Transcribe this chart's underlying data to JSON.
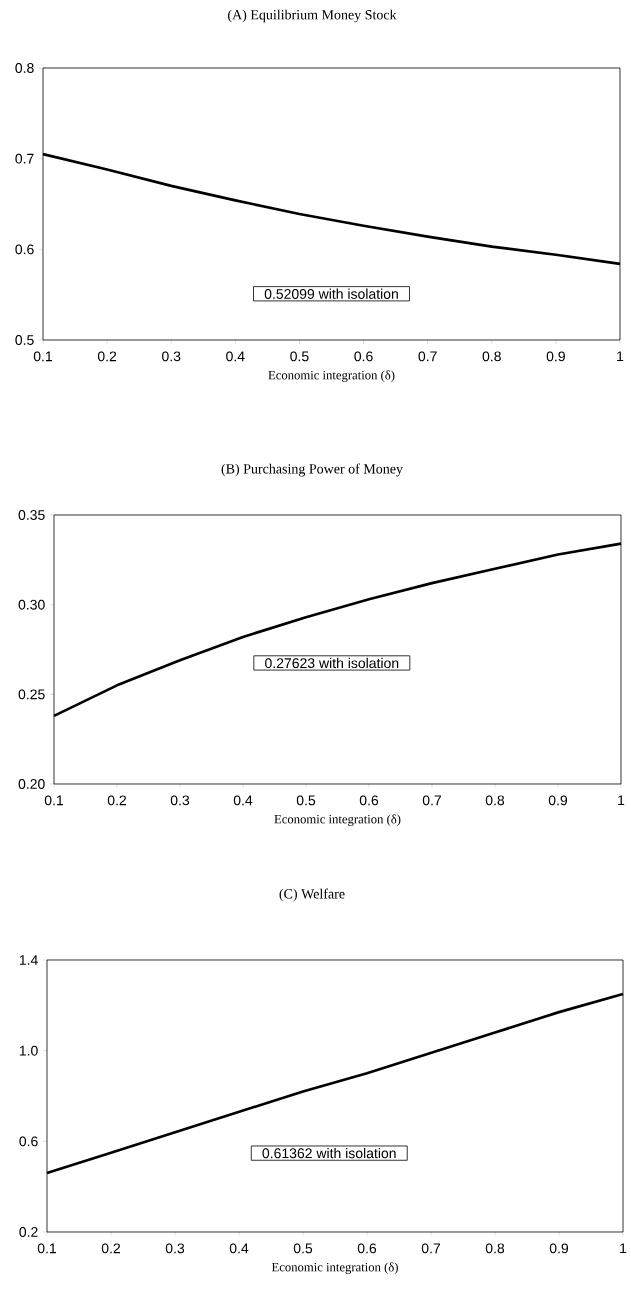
{
  "chart_data": [
    {
      "type": "line",
      "title": "(A) Equilibrium Money Stock",
      "xlabel": "Economic integration (δ)",
      "color": "#000000",
      "x": [
        0.1,
        0.2,
        0.3,
        0.4,
        0.5,
        0.6,
        0.7,
        0.8,
        0.9,
        1.0
      ],
      "values": [
        0.705,
        0.688,
        0.67,
        0.654,
        0.639,
        0.626,
        0.614,
        0.603,
        0.594,
        0.584
      ],
      "xlim": [
        0.1,
        1
      ],
      "ylim": [
        0.5,
        0.8
      ],
      "xticks": [
        0.1,
        0.2,
        0.3,
        0.4,
        0.5,
        0.6,
        0.7,
        0.8,
        0.9,
        1
      ],
      "yticks": [
        0.5,
        0.6,
        0.7,
        0.8
      ],
      "annotations": [
        "0.52099 with isolation"
      ]
    },
    {
      "type": "line",
      "title": "(B) Purchasing Power of Money",
      "xlabel": "Economic integration (δ)",
      "color": "#000000",
      "x": [
        0.1,
        0.2,
        0.3,
        0.4,
        0.5,
        0.6,
        0.7,
        0.8,
        0.9,
        1.0
      ],
      "values": [
        0.238,
        0.255,
        0.269,
        0.282,
        0.293,
        0.303,
        0.312,
        0.32,
        0.328,
        0.334
      ],
      "xlim": [
        0.1,
        1
      ],
      "ylim": [
        0.2,
        0.35
      ],
      "xticks": [
        0.1,
        0.2,
        0.3,
        0.4,
        0.5,
        0.6,
        0.7,
        0.8,
        0.9,
        1
      ],
      "yticks": [
        {
          "value": 0.2,
          "label": "0.20"
        },
        {
          "value": 0.25,
          "label": "0.25"
        },
        {
          "value": 0.3,
          "label": "0.30"
        },
        {
          "value": 0.35,
          "label": "0.35"
        }
      ],
      "annotations": [
        "0.27623 with isolation"
      ]
    },
    {
      "type": "line",
      "title": "(C) Welfare",
      "xlabel": "Economic integration (δ)",
      "color": "#000000",
      "x": [
        0.1,
        0.2,
        0.3,
        0.4,
        0.5,
        0.6,
        0.7,
        0.8,
        0.9,
        1.0
      ],
      "values": [
        0.46,
        0.55,
        0.64,
        0.73,
        0.82,
        0.9,
        0.99,
        1.08,
        1.17,
        1.25
      ],
      "xlim": [
        0.1,
        1
      ],
      "ylim": [
        0.2,
        1.4
      ],
      "xticks": [
        0.1,
        0.2,
        0.3,
        0.4,
        0.5,
        0.6,
        0.7,
        0.8,
        0.9,
        1
      ],
      "yticks": [
        0.2,
        0.6,
        {
          "value": 1.0,
          "label": "1.0"
        },
        1.4
      ],
      "annotations": [
        "0.61362 with isolation"
      ]
    }
  ]
}
